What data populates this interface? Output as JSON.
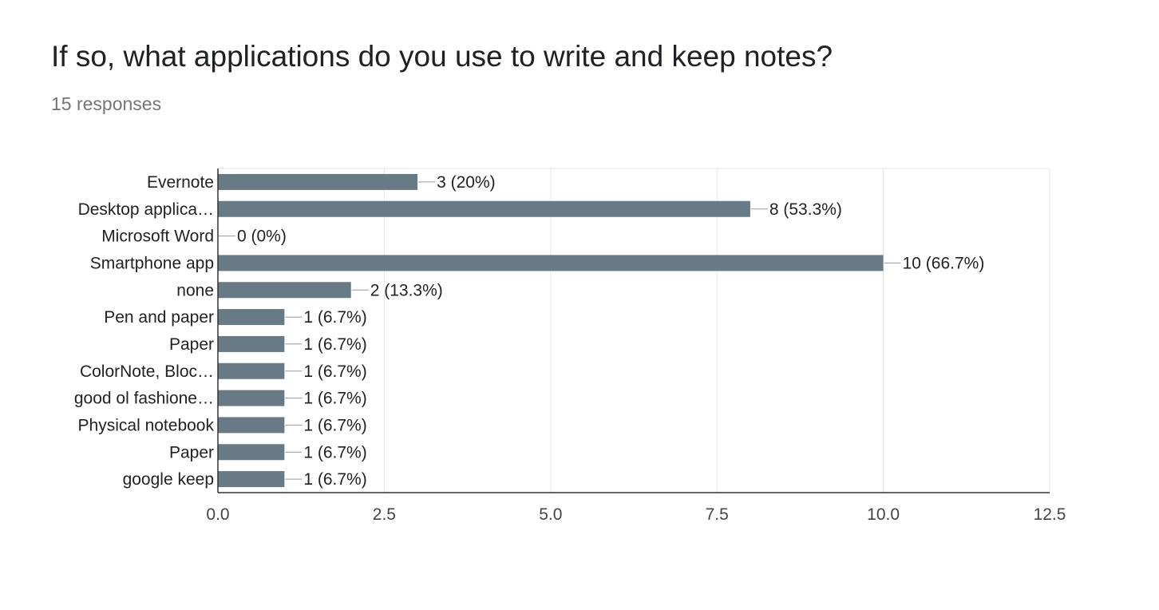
{
  "title": "If so, what applications do you use to write and keep notes?",
  "subtitle": "15 responses",
  "colors": {
    "bar": "#677a86",
    "grid": "#e6e6e6",
    "axis": "#333333",
    "connector": "#999999"
  },
  "chart_data": {
    "type": "bar",
    "orientation": "horizontal",
    "title": "If so, what applications do you use to write and keep notes?",
    "subtitle": "15 responses",
    "categories": [
      "Evernote",
      "Desktop applica…",
      "Microsoft Word",
      "Smartphone app",
      "none",
      "Pen and paper",
      "Paper",
      "ColorNote, Bloc…",
      "good ol fashione…",
      "Physical notebook",
      "Paper",
      "google keep"
    ],
    "values": [
      3,
      8,
      0,
      10,
      2,
      1,
      1,
      1,
      1,
      1,
      1,
      1
    ],
    "data_labels": [
      "3 (20%)",
      "8 (53.3%)",
      "0 (0%)",
      "10 (66.7%)",
      "2 (13.3%)",
      "1 (6.7%)",
      "1 (6.7%)",
      "1 (6.7%)",
      "1 (6.7%)",
      "1 (6.7%)",
      "1 (6.7%)",
      "1 (6.7%)"
    ],
    "xlim": [
      0,
      12.5
    ],
    "xticks": [
      0,
      2.5,
      5,
      7.5,
      10,
      12.5
    ],
    "xtick_labels": [
      "0.0",
      "2.5",
      "5.0",
      "7.5",
      "10.0",
      "12.5"
    ],
    "grid": true,
    "legend": "none"
  }
}
